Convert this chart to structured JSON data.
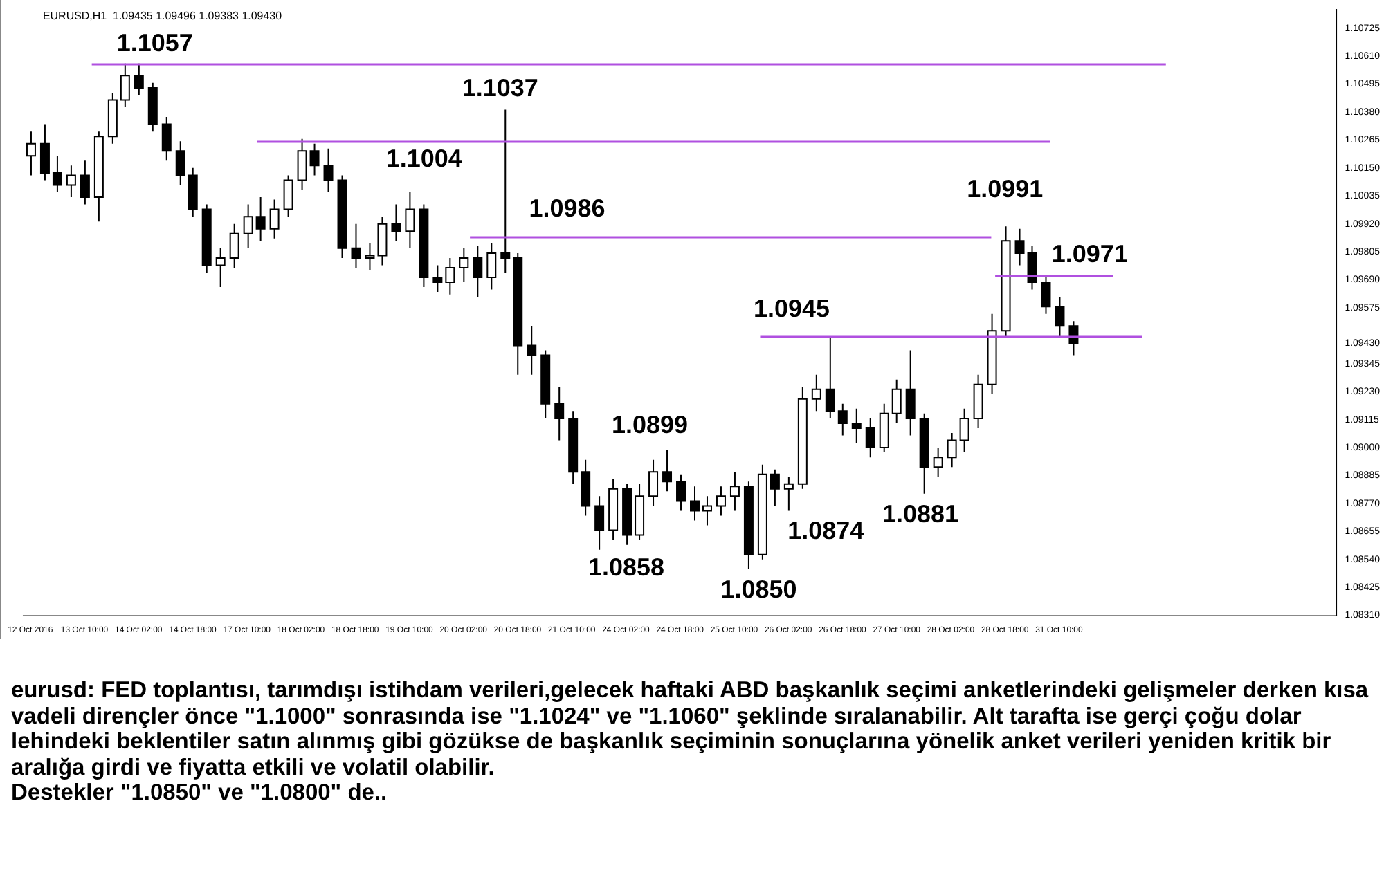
{
  "chart_data": {
    "type": "candlestick",
    "title": "EURUSD,H1  1.09435 1.09496 1.09383 1.09430",
    "color": "#000000",
    "categories": [
      "12 Oct 2016",
      null,
      null,
      null,
      "13 Oct 10:00",
      null,
      null,
      null,
      "14 Oct 02:00",
      null,
      null,
      null,
      "14 Oct 18:00",
      null,
      null,
      null,
      "17 Oct 10:00",
      null,
      null,
      null,
      "18 Oct 02:00",
      null,
      null,
      null,
      "18 Oct 18:00",
      null,
      null,
      null,
      "19 Oct 10:00",
      null,
      null,
      null,
      "20 Oct 02:00",
      null,
      null,
      null,
      "20 Oct 18:00",
      null,
      null,
      null,
      "21 Oct 10:00",
      null,
      null,
      null,
      "24 Oct 02:00",
      null,
      null,
      null,
      "24 Oct 18:00",
      null,
      null,
      null,
      "25 Oct 10:00",
      null,
      null,
      null,
      "26 Oct 02:00",
      null,
      null,
      null,
      "26 Oct 18:00",
      null,
      null,
      null,
      "27 Oct 10:00",
      null,
      null,
      null,
      "28 Oct 02:00",
      null,
      null,
      null,
      "28 Oct 18:00",
      null,
      null,
      null,
      "31 Oct 10:00",
      null,
      null,
      null,
      null,
      null,
      null,
      null,
      null,
      null,
      null,
      null,
      null,
      null,
      null,
      null,
      null,
      null,
      null,
      null,
      null
    ],
    "ohlc": [
      [
        1.102,
        1.103,
        1.1012,
        1.1025
      ],
      [
        1.1025,
        1.1033,
        1.101,
        1.1013
      ],
      [
        1.1013,
        1.102,
        1.1005,
        1.1008
      ],
      [
        1.1008,
        1.1016,
        1.1003,
        1.1012
      ],
      [
        1.1012,
        1.1018,
        1.1,
        1.1003
      ],
      [
        1.1003,
        1.103,
        1.0993,
        1.1028
      ],
      [
        1.1028,
        1.1046,
        1.1025,
        1.1043
      ],
      [
        1.1043,
        1.1058,
        1.104,
        1.1053
      ],
      [
        1.1053,
        1.1058,
        1.1045,
        1.1048
      ],
      [
        1.1048,
        1.105,
        1.103,
        1.1033
      ],
      [
        1.1033,
        1.1036,
        1.1018,
        1.1022
      ],
      [
        1.1022,
        1.1026,
        1.1008,
        1.1012
      ],
      [
        1.1012,
        1.1015,
        1.0995,
        1.0998
      ],
      [
        1.0998,
        1.1,
        1.0972,
        1.0975
      ],
      [
        1.0975,
        1.0982,
        1.0966,
        1.0978
      ],
      [
        1.0978,
        1.0992,
        1.0974,
        1.0988
      ],
      [
        1.0988,
        1.1,
        1.0982,
        1.0995
      ],
      [
        1.0995,
        1.1003,
        1.0985,
        1.099
      ],
      [
        1.099,
        1.1002,
        1.0986,
        1.0998
      ],
      [
        1.0998,
        1.1012,
        1.0995,
        1.101
      ],
      [
        1.101,
        1.1027,
        1.1006,
        1.1022
      ],
      [
        1.1022,
        1.1025,
        1.1012,
        1.1016
      ],
      [
        1.1016,
        1.1023,
        1.1005,
        1.101
      ],
      [
        1.101,
        1.1012,
        1.0978,
        1.0982
      ],
      [
        1.0982,
        1.0992,
        1.0974,
        1.0978
      ],
      [
        1.0978,
        1.0984,
        1.0973,
        1.0979
      ],
      [
        1.0979,
        1.0995,
        1.0975,
        1.0992
      ],
      [
        1.0992,
        1.1,
        1.0985,
        1.0989
      ],
      [
        1.0989,
        1.1005,
        1.0982,
        1.0998
      ],
      [
        1.0998,
        1.1,
        1.0966,
        1.097
      ],
      [
        1.097,
        1.0975,
        1.0964,
        1.0968
      ],
      [
        1.0968,
        1.0978,
        1.0963,
        1.0974
      ],
      [
        1.0974,
        1.0982,
        1.0968,
        1.0978
      ],
      [
        1.0978,
        1.0983,
        1.0962,
        1.097
      ],
      [
        1.097,
        1.0984,
        1.0965,
        1.098
      ],
      [
        1.098,
        1.1039,
        1.0972,
        1.0978
      ],
      [
        1.0978,
        1.098,
        1.093,
        1.0942
      ],
      [
        1.0942,
        1.095,
        1.093,
        1.0938
      ],
      [
        1.0938,
        1.094,
        1.0912,
        1.0918
      ],
      [
        1.0918,
        1.0925,
        1.0903,
        1.0912
      ],
      [
        1.0912,
        1.0915,
        1.0885,
        1.089
      ],
      [
        1.089,
        1.0895,
        1.0872,
        1.0876
      ],
      [
        1.0876,
        1.088,
        1.0858,
        1.0866
      ],
      [
        1.0866,
        1.0887,
        1.0862,
        1.0883
      ],
      [
        1.0883,
        1.0885,
        1.086,
        1.0864
      ],
      [
        1.0864,
        1.0885,
        1.0862,
        1.088
      ],
      [
        1.088,
        1.0895,
        1.0876,
        1.089
      ],
      [
        1.089,
        1.0899,
        1.0882,
        1.0886
      ],
      [
        1.0886,
        1.0889,
        1.0874,
        1.0878
      ],
      [
        1.0878,
        1.0884,
        1.087,
        1.0874
      ],
      [
        1.0874,
        1.088,
        1.0868,
        1.0876
      ],
      [
        1.0876,
        1.0884,
        1.0872,
        1.088
      ],
      [
        1.088,
        1.089,
        1.0874,
        1.0884
      ],
      [
        1.0884,
        1.0886,
        1.085,
        1.0856
      ],
      [
        1.0856,
        1.0893,
        1.0854,
        1.0889
      ],
      [
        1.0889,
        1.0891,
        1.0876,
        1.0883
      ],
      [
        1.0883,
        1.0888,
        1.0874,
        1.0885
      ],
      [
        1.0885,
        1.0925,
        1.0883,
        1.092
      ],
      [
        1.092,
        1.093,
        1.0915,
        1.0924
      ],
      [
        1.0924,
        1.0945,
        1.0912,
        1.0915
      ],
      [
        1.0915,
        1.0918,
        1.0905,
        1.091
      ],
      [
        1.091,
        1.0916,
        1.0902,
        1.0908
      ],
      [
        1.0908,
        1.0912,
        1.0896,
        1.09
      ],
      [
        1.09,
        1.0918,
        1.0898,
        1.0914
      ],
      [
        1.0914,
        1.0928,
        1.091,
        1.0924
      ],
      [
        1.0924,
        1.094,
        1.0905,
        1.0912
      ],
      [
        1.0912,
        1.0914,
        1.0881,
        1.0892
      ],
      [
        1.0892,
        1.09,
        1.0888,
        1.0896
      ],
      [
        1.0896,
        1.0906,
        1.0892,
        1.0903
      ],
      [
        1.0903,
        1.0916,
        1.0898,
        1.0912
      ],
      [
        1.0912,
        1.093,
        1.0908,
        1.0926
      ],
      [
        1.0926,
        1.0955,
        1.0922,
        1.0948
      ],
      [
        1.0948,
        1.0991,
        1.0945,
        1.0985
      ],
      [
        1.0985,
        1.099,
        1.0975,
        1.098
      ],
      [
        1.098,
        1.0983,
        1.0965,
        1.0968
      ],
      [
        1.0968,
        1.0971,
        1.0955,
        1.0958
      ],
      [
        1.0958,
        1.0962,
        1.0945,
        1.095
      ],
      [
        1.095,
        1.0952,
        1.0938,
        1.0943
      ],
      null,
      null,
      null,
      null,
      null,
      null,
      null,
      null,
      null,
      null,
      null,
      null,
      null,
      null,
      null,
      null,
      null,
      null,
      null
    ],
    "ref_lines": [
      {
        "axis": "y",
        "value": 1.1058,
        "color": "#b050e0"
      },
      {
        "axis": "y",
        "value": 1.1026,
        "color": "#b050e0"
      },
      {
        "axis": "y",
        "value": 1.0987,
        "color": "#b050e0"
      },
      {
        "axis": "y",
        "value": 1.0946,
        "color": "#b050e0"
      },
      {
        "axis": "y",
        "value": 1.0971,
        "color": "#b050e0"
      }
    ],
    "ylim": [
      1.0831,
      1.108
    ],
    "yticks": [
      {
        "value": 1.0831,
        "label": "1.08310"
      },
      1.08425,
      {
        "value": 1.0854,
        "label": "1.08540"
      },
      1.08655,
      {
        "value": 1.0877,
        "label": "1.08770"
      },
      1.08885,
      {
        "value": 1.09,
        "label": "1.09000"
      },
      1.09115,
      {
        "value": 1.0923,
        "label": "1.09230"
      },
      1.09345,
      {
        "value": 1.0943,
        "label": "1.09430"
      },
      1.09575,
      {
        "value": 1.0969,
        "label": "1.09690"
      },
      1.09805,
      {
        "value": 1.0992,
        "label": "1.09920"
      },
      1.10035,
      {
        "value": 1.1015,
        "label": "1.10150"
      },
      1.10265,
      {
        "value": 1.1038,
        "label": "1.10380"
      },
      1.10495,
      {
        "value": 1.1061,
        "label": "1.10610"
      },
      1.10725
    ],
    "annotations": [
      "1.1057",
      "1.1037",
      "1.1004",
      "1.0986",
      {
        "text": "1.0991",
        "x": "28 Oct 18:00",
        "y": 1.0991
      },
      {
        "text": "1.0971",
        "y": 1.0971
      },
      "1.0945",
      "1.0899",
      "1.0858",
      "1.0850",
      "1.0874",
      "1.0881",
      "eurusd: FED toplantısı, tarımdışı istihdam verileri,gelecek haftaki ABD başkanlık seçimi anketlerindeki gelişmeler derken kısa vadeli dirençler önce \"1.1000\" sonrasında ise \"1.1024\" ve \"1.1060\" şeklinde sıralanabilir. Alt tarafta ise gerçi çoğu dolar lehindeki beklentiler satın alınmış gibi gözükse de başkanlık seçiminin sonuçlarına yönelik anket verileri yeniden kritik bir aralığa girdi ve fiyatta etkili ve volatil olabilir.",
      "Destekler \"1.0850\" ve \"1.0800\" de.."
    ]
  }
}
